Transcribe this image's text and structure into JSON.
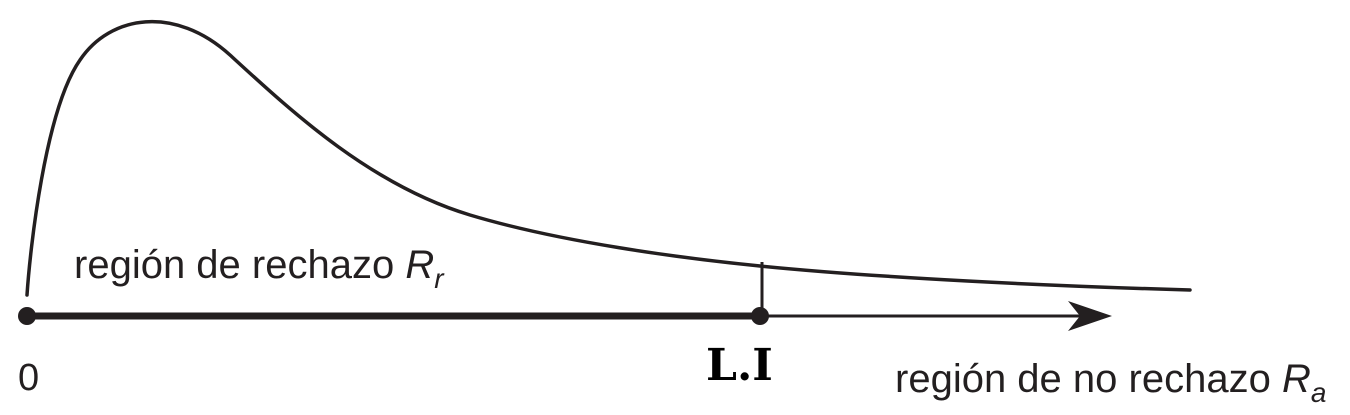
{
  "labels": {
    "origin": "0",
    "rejection_region": "región de rechazo ",
    "rejection_symbol": "R",
    "rejection_subscript": "r",
    "limit": "L.I",
    "non_rejection_region": "región de no rechazo ",
    "non_rejection_symbol": "R",
    "non_rejection_subscript": "a"
  },
  "colors": {
    "ink": "#231f20",
    "background": "#ffffff"
  }
}
